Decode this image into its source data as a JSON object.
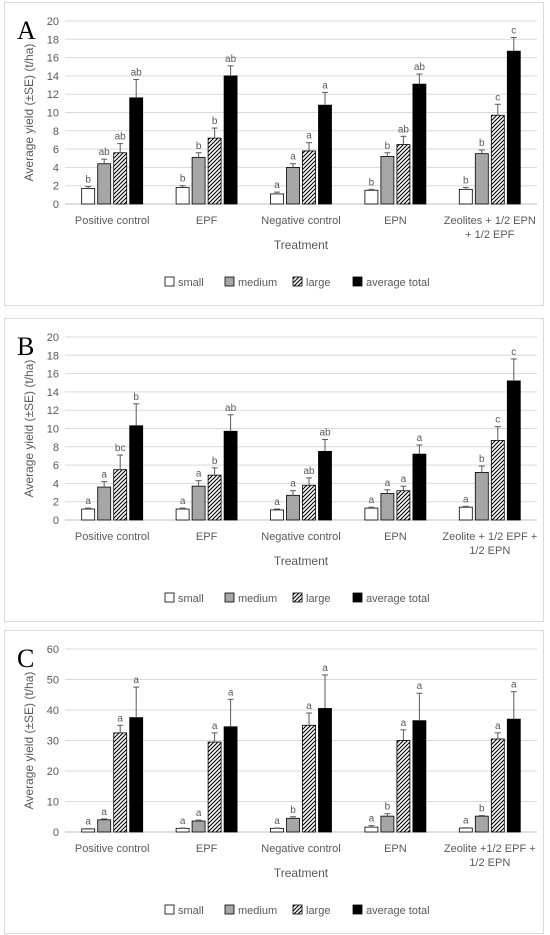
{
  "legend_labels": [
    "small",
    "medium",
    "large",
    "average total"
  ],
  "chart_data": [
    {
      "panel": "A",
      "type": "bar",
      "xlabel": "Treatment",
      "ylabel": "Average yield (±SE) (t/ha)",
      "ylim": [
        0,
        20
      ],
      "ytick_step": 2,
      "ytick_labels": [
        "0",
        "2",
        "4",
        "6",
        "8",
        "10",
        "12",
        "14",
        "16",
        "18",
        "20"
      ],
      "categories": [
        [
          "Positive control"
        ],
        [
          "EPF"
        ],
        [
          "Negative control"
        ],
        [
          "EPN"
        ],
        [
          "Zeolites + 1/2 EPN",
          "+ 1/2 EPF"
        ]
      ],
      "series": [
        {
          "name": "small",
          "values": [
            1.7,
            1.8,
            1.1,
            1.5,
            1.6
          ],
          "errors": [
            0.2,
            0.2,
            0.2,
            0.1,
            0.2
          ],
          "labels": [
            "b",
            "b",
            "a",
            "b",
            "b"
          ]
        },
        {
          "name": "medium",
          "values": [
            4.4,
            5.1,
            4.0,
            5.2,
            5.5
          ],
          "errors": [
            0.5,
            0.5,
            0.4,
            0.4,
            0.4
          ],
          "labels": [
            "ab",
            "b",
            "a",
            "b",
            "b"
          ]
        },
        {
          "name": "large",
          "values": [
            5.6,
            7.2,
            5.8,
            6.5,
            9.7
          ],
          "errors": [
            1.0,
            1.1,
            0.9,
            0.9,
            1.2
          ],
          "labels": [
            "ab",
            "b",
            "a",
            "ab",
            "c"
          ]
        },
        {
          "name": "average total",
          "values": [
            11.6,
            14.0,
            10.8,
            13.1,
            16.7
          ],
          "errors": [
            2.0,
            1.1,
            1.4,
            1.1,
            1.5
          ],
          "labels": [
            "ab",
            "ab",
            "a",
            "ab",
            "c"
          ]
        }
      ]
    },
    {
      "panel": "B",
      "type": "bar",
      "xlabel": "Treatment",
      "ylabel": "Average yield (±SE) (t/ha)",
      "ylim": [
        0,
        20
      ],
      "ytick_step": 2,
      "ytick_labels": [
        "0",
        "2",
        "4",
        "6",
        "8",
        "10",
        "12",
        "14",
        "16",
        "18",
        "20"
      ],
      "categories": [
        [
          "Positive control"
        ],
        [
          "EPF"
        ],
        [
          "Negative control"
        ],
        [
          "EPN"
        ],
        [
          "Zeolite + 1/2 EPF +",
          "1/2 EPN"
        ]
      ],
      "series": [
        {
          "name": "small",
          "values": [
            1.2,
            1.2,
            1.1,
            1.3,
            1.4
          ],
          "errors": [
            0.1,
            0.1,
            0.1,
            0.1,
            0.1
          ],
          "labels": [
            "a",
            "a",
            "a",
            "a",
            "a"
          ]
        },
        {
          "name": "medium",
          "values": [
            3.6,
            3.7,
            2.7,
            2.9,
            5.2
          ],
          "errors": [
            0.6,
            0.6,
            0.5,
            0.4,
            0.7
          ],
          "labels": [
            "a",
            "a",
            "a",
            "a",
            "b"
          ]
        },
        {
          "name": "large",
          "values": [
            5.5,
            4.9,
            3.8,
            3.2,
            8.7
          ],
          "errors": [
            1.6,
            0.8,
            0.8,
            0.5,
            1.5
          ],
          "labels": [
            "bc",
            "b",
            "ab",
            "a",
            "c"
          ]
        },
        {
          "name": "average total",
          "values": [
            10.3,
            9.7,
            7.5,
            7.2,
            15.2
          ],
          "errors": [
            2.4,
            1.8,
            1.3,
            1.0,
            2.4
          ],
          "labels": [
            "b",
            "ab",
            "ab",
            "a",
            "c"
          ]
        }
      ]
    },
    {
      "panel": "C",
      "type": "bar",
      "xlabel": "Treatment",
      "ylabel": "Average yield (±SE) (t/ha)",
      "ylim": [
        0,
        60
      ],
      "ytick_step": 10,
      "ytick_labels": [
        "0",
        "10",
        "20",
        "30",
        "40",
        "50",
        "60"
      ],
      "categories": [
        [
          "Positive control"
        ],
        [
          "EPF"
        ],
        [
          "Negative control"
        ],
        [
          "EPN"
        ],
        [
          "Zeolite +1/2 EPF +",
          "1/2 EPN"
        ]
      ],
      "series": [
        {
          "name": "small",
          "values": [
            1.0,
            1.2,
            1.2,
            1.6,
            1.3
          ],
          "errors": [
            0.1,
            0.1,
            0.1,
            0.5,
            0.1
          ],
          "labels": [
            "a",
            "a",
            "a",
            "a",
            "a"
          ]
        },
        {
          "name": "medium",
          "values": [
            4.0,
            3.6,
            4.5,
            5.2,
            5.2
          ],
          "errors": [
            0.3,
            0.3,
            0.5,
            0.8,
            0.2
          ],
          "labels": [
            "a",
            "a",
            "b",
            "b",
            "b"
          ]
        },
        {
          "name": "large",
          "values": [
            32.5,
            29.5,
            35.0,
            30.0,
            30.5
          ],
          "errors": [
            2.5,
            3.0,
            4.0,
            3.5,
            2.0
          ],
          "labels": [
            "a",
            "a",
            "a",
            "a",
            "a"
          ]
        },
        {
          "name": "average total",
          "values": [
            37.5,
            34.5,
            40.5,
            36.5,
            37.0
          ],
          "errors": [
            10.0,
            9.0,
            11.0,
            9.0,
            9.0
          ],
          "labels": [
            "a",
            "a",
            "a",
            "a",
            "a"
          ]
        }
      ]
    }
  ]
}
